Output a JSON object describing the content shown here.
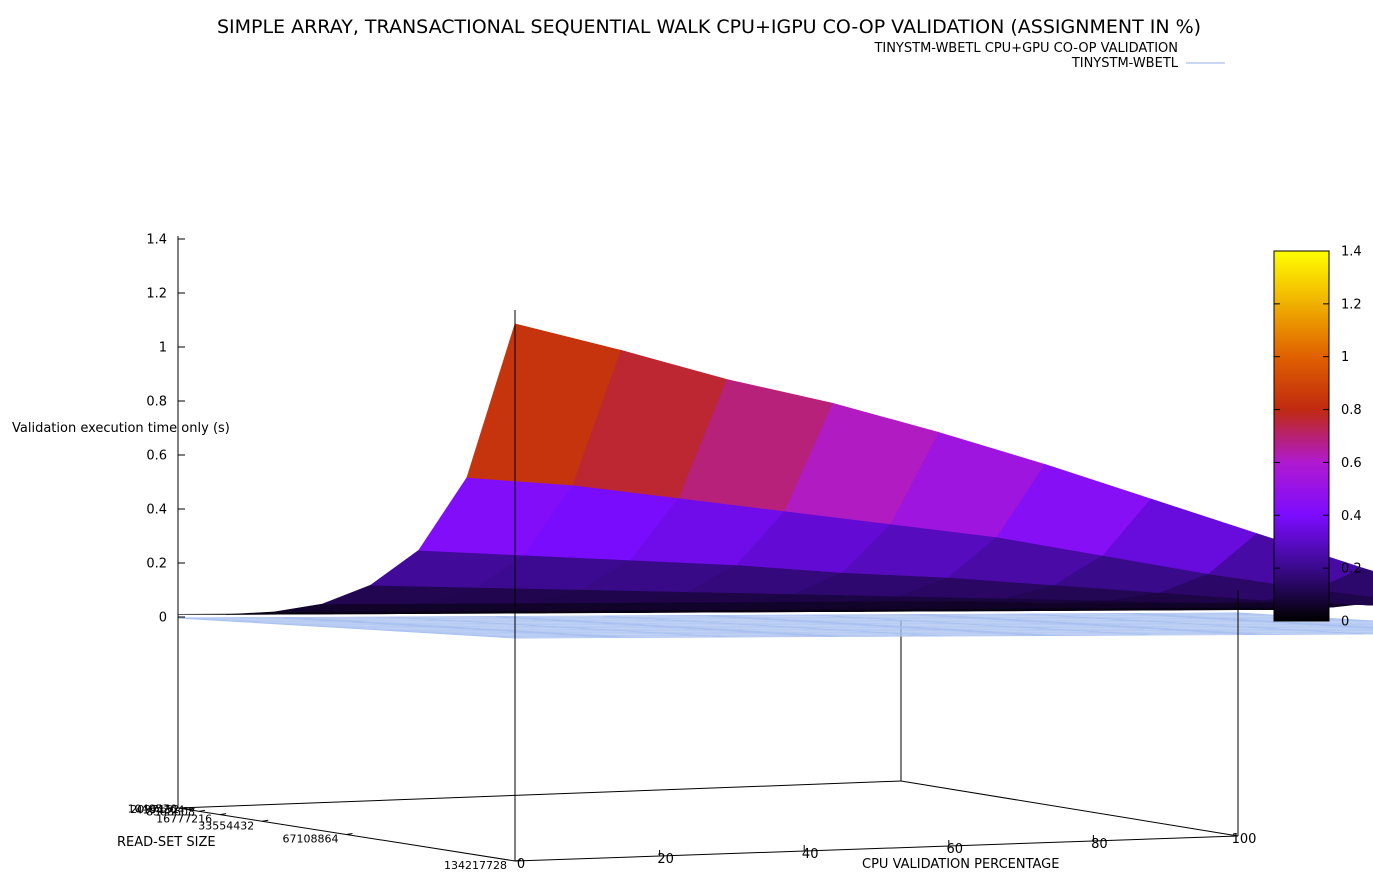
{
  "chart_data": {
    "type": "surface3d",
    "title": "SIMPLE ARRAY, TRANSACTIONAL SEQUENTIAL WALK CPU+IGPU CO-OP VALIDATION (ASSIGNMENT IN %)",
    "xlabel": "CPU VALIDATION PERCENTAGE",
    "ylabel": "READ-SET SIZE",
    "zlabel": "Validation execution time only (s)",
    "xlim": [
      0,
      100
    ],
    "zlim": [
      0,
      1.4
    ],
    "x_ticks": [
      "0",
      "20",
      "40",
      "60",
      "80",
      "100"
    ],
    "y_ticks": [
      "16777216",
      "33554432",
      "67108864",
      "134217728"
    ],
    "y_ticks_overlapped": [
      "1048576",
      "2097152",
      "4194304",
      "8388608"
    ],
    "z_ticks": [
      "0",
      "0.2",
      "0.4",
      "0.6",
      "0.8",
      "1",
      "1.2",
      "1.4"
    ],
    "colorbar": {
      "range": [
        0,
        1.4
      ],
      "ticks": [
        "0",
        "0.2",
        "0.4",
        "0.6",
        "0.8",
        "1",
        "1.2",
        "1.4"
      ],
      "palette": [
        "#000000",
        "#3a0a8c",
        "#7b0cff",
        "#b01ad0",
        "#c02a10",
        "#e06000",
        "#f0b000",
        "#ffff00"
      ]
    },
    "legend": {
      "position": "top-right",
      "header": "TINYSTM-WBETL CPU+GPU CO-OP VALIDATION",
      "entries": [
        {
          "label": "TINYSTM-WBETL",
          "color": "#a8c0f0"
        }
      ]
    },
    "series": [
      {
        "name": "TINYSTM-WBETL CPU+GPU CO-OP VALIDATION",
        "kind": "surface",
        "read_set_sizes": [
          1048576,
          2097152,
          4194304,
          8388608,
          16777216,
          33554432,
          67108864,
          134217728
        ],
        "cpu_percent": [
          0,
          10,
          20,
          30,
          40,
          50,
          60,
          70,
          80,
          90,
          100
        ],
        "z": [
          [
            0.01,
            0.01,
            0.01,
            0.01,
            0.01,
            0.01,
            0.01,
            0.01,
            0.01,
            0.01,
            0.01
          ],
          [
            0.02,
            0.02,
            0.02,
            0.02,
            0.02,
            0.02,
            0.02,
            0.02,
            0.02,
            0.02,
            0.02
          ],
          [
            0.04,
            0.04,
            0.04,
            0.04,
            0.04,
            0.04,
            0.04,
            0.04,
            0.04,
            0.04,
            0.04
          ],
          [
            0.08,
            0.08,
            0.08,
            0.08,
            0.08,
            0.08,
            0.08,
            0.07,
            0.07,
            0.07,
            0.07
          ],
          [
            0.16,
            0.15,
            0.14,
            0.13,
            0.12,
            0.11,
            0.1,
            0.09,
            0.08,
            0.08,
            0.07
          ],
          [
            0.3,
            0.28,
            0.26,
            0.24,
            0.21,
            0.19,
            0.16,
            0.13,
            0.1,
            0.08,
            0.07
          ],
          [
            0.58,
            0.55,
            0.5,
            0.45,
            0.4,
            0.35,
            0.28,
            0.21,
            0.15,
            0.1,
            0.07
          ],
          [
            1.16,
            1.06,
            0.95,
            0.86,
            0.75,
            0.63,
            0.5,
            0.37,
            0.24,
            0.12,
            0.07
          ]
        ]
      },
      {
        "name": "TINYSTM-WBETL",
        "kind": "wireframe",
        "z": 0
      }
    ]
  }
}
